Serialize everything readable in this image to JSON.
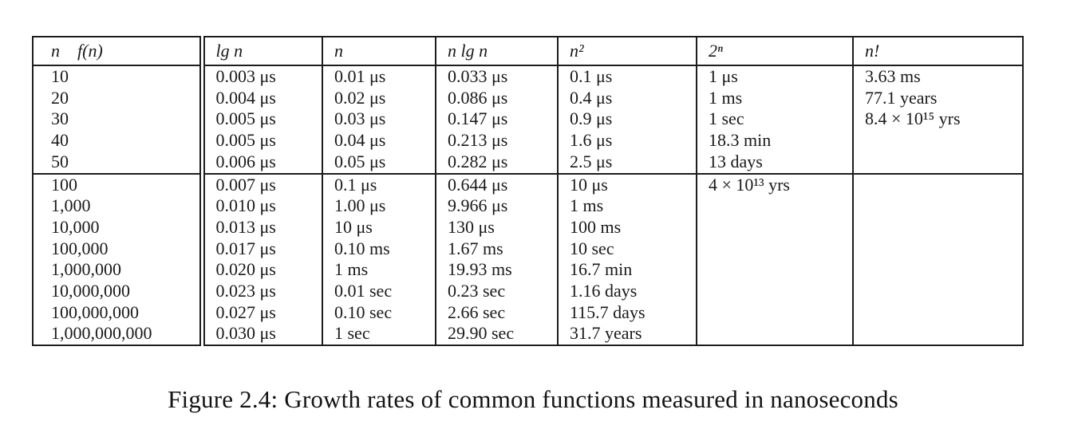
{
  "page": {
    "caption": "Figure 2.4: Growth rates of common functions measured in nanoseconds"
  },
  "table": {
    "header": {
      "corner_n": "n",
      "corner_fn": "f(n)",
      "columns": [
        "lg n",
        "n",
        "n lg n",
        "n²",
        "2ⁿ",
        "n!"
      ]
    },
    "groups": [
      {
        "name": "small-n",
        "rows": [
          {
            "n": "10",
            "cells": [
              "0.003 μs",
              "0.01 μs",
              "0.033 μs",
              "0.1 μs",
              "1 μs",
              "3.63 ms"
            ]
          },
          {
            "n": "20",
            "cells": [
              "0.004 μs",
              "0.02 μs",
              "0.086 μs",
              "0.4 μs",
              "1 ms",
              "77.1 years"
            ]
          },
          {
            "n": "30",
            "cells": [
              "0.005 μs",
              "0.03 μs",
              "0.147 μs",
              "0.9 μs",
              "1 sec",
              "8.4 × 10¹⁵ yrs"
            ]
          },
          {
            "n": "40",
            "cells": [
              "0.005 μs",
              "0.04 μs",
              "0.213 μs",
              "1.6 μs",
              "18.3 min",
              ""
            ]
          },
          {
            "n": "50",
            "cells": [
              "0.006 μs",
              "0.05 μs",
              "0.282 μs",
              "2.5 μs",
              "13 days",
              ""
            ]
          }
        ]
      },
      {
        "name": "large-n",
        "rows": [
          {
            "n": "100",
            "cells": [
              "0.007 μs",
              "0.1 μs",
              "0.644 μs",
              "10 μs",
              "4 × 10¹³ yrs",
              ""
            ]
          },
          {
            "n": "1,000",
            "cells": [
              "0.010 μs",
              "1.00 μs",
              "9.966 μs",
              "1 ms",
              "",
              ""
            ]
          },
          {
            "n": "10,000",
            "cells": [
              "0.013 μs",
              "10 μs",
              "130 μs",
              "100 ms",
              "",
              ""
            ]
          },
          {
            "n": "100,000",
            "cells": [
              "0.017 μs",
              "0.10 ms",
              "1.67 ms",
              "10 sec",
              "",
              ""
            ]
          },
          {
            "n": "1,000,000",
            "cells": [
              "0.020 μs",
              "1 ms",
              "19.93 ms",
              "16.7 min",
              "",
              ""
            ]
          },
          {
            "n": "10,000,000",
            "cells": [
              "0.023 μs",
              "0.01 sec",
              "0.23 sec",
              "1.16 days",
              "",
              ""
            ]
          },
          {
            "n": "100,000,000",
            "cells": [
              "0.027 μs",
              "0.10 sec",
              "2.66 sec",
              "115.7 days",
              "",
              ""
            ]
          },
          {
            "n": "1,000,000,000",
            "cells": [
              "0.030 μs",
              "1 sec",
              "29.90 sec",
              "31.7 years",
              "",
              ""
            ]
          }
        ]
      }
    ]
  }
}
